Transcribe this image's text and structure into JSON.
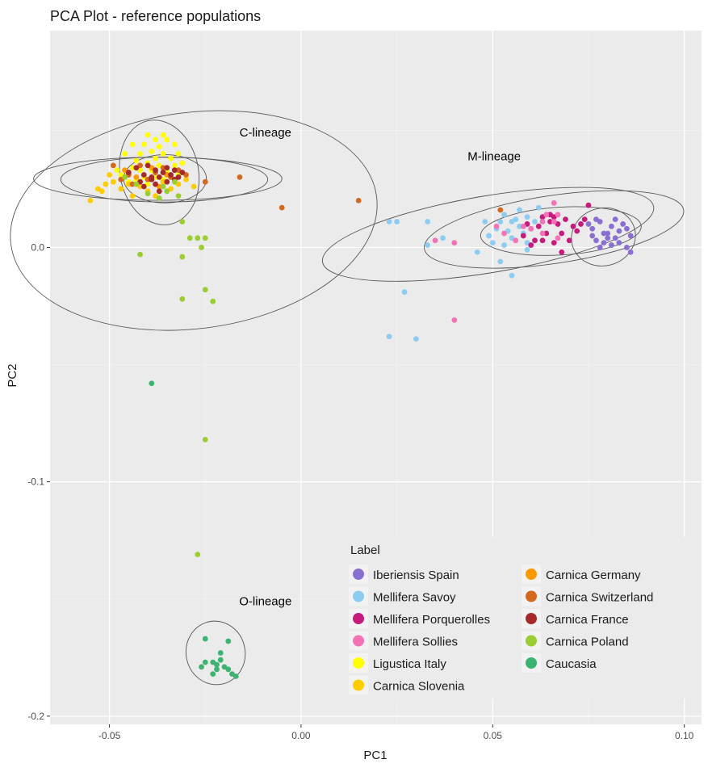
{
  "chart_data": {
    "type": "scatter",
    "title": "PCA Plot - reference populations",
    "xlabel": "PC1",
    "ylabel": "PC2",
    "xlim": [
      -0.0655,
      0.1045
    ],
    "ylim": [
      -0.2035,
      0.0925
    ],
    "x_ticks": [
      {
        "value": -0.05,
        "label": "-0.05"
      },
      {
        "value": 0.0,
        "label": "0.00"
      },
      {
        "value": 0.05,
        "label": "0.05"
      },
      {
        "value": 0.1,
        "label": "0.10"
      }
    ],
    "y_ticks": [
      {
        "value": 0.0,
        "label": "0.0"
      },
      {
        "value": -0.1,
        "label": "-0.1"
      },
      {
        "value": -0.2,
        "label": "-0.2"
      }
    ],
    "grid": true,
    "legend": {
      "title": "Label",
      "placement": "bottom-right"
    },
    "annotations": [
      {
        "text": "C-lineage",
        "x": -0.0093,
        "y": 0.049
      },
      {
        "text": "M-lineage",
        "x": 0.0504,
        "y": 0.039
      },
      {
        "text": "O-lineage",
        "x": -0.0093,
        "y": -0.151
      }
    ],
    "series": [
      {
        "name": "Iberiensis Spain",
        "color": "#8a6fd2",
        "points": [
          [
            0.075,
            0.01
          ],
          [
            0.076,
            0.008
          ],
          [
            0.078,
            0.011
          ],
          [
            0.079,
            0.006
          ],
          [
            0.08,
            0.004
          ],
          [
            0.081,
            0.009
          ],
          [
            0.082,
            0.012
          ],
          [
            0.083,
            0.007
          ],
          [
            0.077,
            0.003
          ],
          [
            0.076,
            0.005
          ],
          [
            0.079,
            0.002
          ],
          [
            0.081,
            0.001
          ],
          [
            0.083,
            0.002
          ],
          [
            0.084,
            0.01
          ],
          [
            0.085,
            0.008
          ],
          [
            0.086,
            0.005
          ],
          [
            0.085,
            0.0
          ],
          [
            0.086,
            -0.002
          ],
          [
            0.078,
            0.0
          ],
          [
            0.08,
            0.006
          ],
          [
            0.082,
            0.004
          ],
          [
            0.077,
            0.012
          ]
        ]
      },
      {
        "name": "Mellifera Savoy",
        "color": "#8dccf0",
        "points": [
          [
            0.023,
            0.011
          ],
          [
            0.025,
            0.011
          ],
          [
            0.033,
            0.011
          ],
          [
            0.033,
            0.001
          ],
          [
            0.037,
            0.004
          ],
          [
            0.046,
            -0.002
          ],
          [
            0.048,
            0.011
          ],
          [
            0.049,
            0.005
          ],
          [
            0.05,
            0.002
          ],
          [
            0.051,
            0.008
          ],
          [
            0.052,
            0.011
          ],
          [
            0.053,
            0.014
          ],
          [
            0.053,
            0.001
          ],
          [
            0.054,
            0.007
          ],
          [
            0.055,
            0.011
          ],
          [
            0.055,
            0.004
          ],
          [
            0.056,
            0.012
          ],
          [
            0.057,
            0.016
          ],
          [
            0.057,
            0.009
          ],
          [
            0.058,
            0.006
          ],
          [
            0.059,
            0.013
          ],
          [
            0.059,
            0.002
          ],
          [
            0.06,
            0.008
          ],
          [
            0.061,
            0.011
          ],
          [
            0.062,
            0.017
          ],
          [
            0.052,
            -0.006
          ],
          [
            0.055,
            -0.012
          ],
          [
            0.059,
            -0.001
          ],
          [
            0.061,
            0.003
          ],
          [
            0.027,
            -0.019
          ],
          [
            0.023,
            -0.038
          ],
          [
            0.03,
            -0.039
          ]
        ]
      },
      {
        "name": "Mellifera Porquerolles",
        "color": "#c51b7d",
        "points": [
          [
            0.061,
            0.003
          ],
          [
            0.062,
            0.009
          ],
          [
            0.063,
            0.013
          ],
          [
            0.064,
            0.006
          ],
          [
            0.065,
            0.011
          ],
          [
            0.066,
            0.013
          ],
          [
            0.066,
            0.002
          ],
          [
            0.067,
            0.01
          ],
          [
            0.068,
            0.006
          ],
          [
            0.068,
            -0.002
          ],
          [
            0.069,
            0.012
          ],
          [
            0.07,
            0.003
          ],
          [
            0.071,
            0.009
          ],
          [
            0.072,
            0.007
          ],
          [
            0.073,
            0.01
          ],
          [
            0.074,
            0.012
          ],
          [
            0.075,
            0.018
          ],
          [
            0.058,
            0.005
          ],
          [
            0.059,
            0.01
          ],
          [
            0.06,
            0.001
          ],
          [
            0.063,
            0.003
          ],
          [
            0.065,
            0.014
          ]
        ]
      },
      {
        "name": "Mellifera Sollies",
        "color": "#f472b6",
        "points": [
          [
            0.035,
            0.003
          ],
          [
            0.04,
            0.002
          ],
          [
            0.04,
            -0.031
          ],
          [
            0.051,
            0.009
          ],
          [
            0.053,
            0.006
          ],
          [
            0.056,
            0.003
          ],
          [
            0.058,
            0.009
          ],
          [
            0.06,
            0.008
          ],
          [
            0.063,
            0.011
          ],
          [
            0.064,
            0.014
          ],
          [
            0.066,
            0.011
          ],
          [
            0.066,
            0.019
          ],
          [
            0.067,
            0.004
          ],
          [
            0.067,
            0.014
          ],
          [
            0.063,
            0.006
          ]
        ]
      },
      {
        "name": "Ligustica Italy",
        "color": "#ffff00",
        "points": [
          [
            -0.047,
            0.031
          ],
          [
            -0.045,
            0.028
          ],
          [
            -0.044,
            0.034
          ],
          [
            -0.043,
            0.029
          ],
          [
            -0.043,
            0.037
          ],
          [
            -0.042,
            0.033
          ],
          [
            -0.042,
            0.04
          ],
          [
            -0.041,
            0.03
          ],
          [
            -0.041,
            0.044
          ],
          [
            -0.04,
            0.036
          ],
          [
            -0.04,
            0.027
          ],
          [
            -0.039,
            0.041
          ],
          [
            -0.039,
            0.033
          ],
          [
            -0.038,
            0.046
          ],
          [
            -0.038,
            0.038
          ],
          [
            -0.038,
            0.03
          ],
          [
            -0.037,
            0.043
          ],
          [
            -0.037,
            0.035
          ],
          [
            -0.036,
            0.029
          ],
          [
            -0.036,
            0.04
          ],
          [
            -0.035,
            0.046
          ],
          [
            -0.035,
            0.033
          ],
          [
            -0.034,
            0.038
          ],
          [
            -0.034,
            0.03
          ],
          [
            -0.033,
            0.044
          ],
          [
            -0.033,
            0.035
          ],
          [
            -0.032,
            0.04
          ],
          [
            -0.032,
            0.031
          ],
          [
            -0.031,
            0.036
          ],
          [
            -0.046,
            0.04
          ],
          [
            -0.048,
            0.033
          ],
          [
            -0.044,
            0.044
          ],
          [
            -0.04,
            0.048
          ],
          [
            -0.036,
            0.048
          ]
        ]
      },
      {
        "name": "Carnica Slovenia",
        "color": "#ffcc00",
        "points": [
          [
            -0.055,
            0.02
          ],
          [
            -0.052,
            0.024
          ],
          [
            -0.051,
            0.027
          ],
          [
            -0.05,
            0.031
          ],
          [
            -0.049,
            0.028
          ],
          [
            -0.047,
            0.025
          ],
          [
            -0.045,
            0.027
          ],
          [
            -0.044,
            0.022
          ],
          [
            -0.042,
            0.026
          ],
          [
            -0.04,
            0.024
          ],
          [
            -0.038,
            0.022
          ],
          [
            -0.036,
            0.028
          ],
          [
            -0.034,
            0.025
          ],
          [
            -0.032,
            0.027
          ],
          [
            -0.03,
            0.029
          ],
          [
            -0.028,
            0.026
          ],
          [
            -0.053,
            0.025
          ]
        ]
      },
      {
        "name": "Carnica Germany",
        "color": "#ff9900",
        "points": [
          [
            -0.046,
            0.033
          ],
          [
            -0.043,
            0.03
          ],
          [
            -0.039,
            0.034
          ],
          [
            -0.037,
            0.026
          ],
          [
            -0.035,
            0.031
          ]
        ]
      },
      {
        "name": "Carnica Switzerland",
        "color": "#d2691e",
        "points": [
          [
            -0.049,
            0.035
          ],
          [
            -0.047,
            0.029
          ],
          [
            -0.045,
            0.031
          ],
          [
            -0.042,
            0.035
          ],
          [
            -0.04,
            0.029
          ],
          [
            -0.038,
            0.032
          ],
          [
            -0.036,
            0.034
          ],
          [
            -0.034,
            0.03
          ],
          [
            -0.032,
            0.033
          ],
          [
            -0.03,
            0.031
          ],
          [
            -0.025,
            0.028
          ],
          [
            -0.016,
            0.03
          ],
          [
            -0.005,
            0.017
          ],
          [
            0.015,
            0.02
          ],
          [
            0.052,
            0.016
          ],
          [
            -0.044,
            0.027
          ]
        ]
      },
      {
        "name": "Carnica France",
        "color": "#a52a2a",
        "points": [
          [
            -0.045,
            0.032
          ],
          [
            -0.043,
            0.034
          ],
          [
            -0.042,
            0.028
          ],
          [
            -0.041,
            0.031
          ],
          [
            -0.04,
            0.035
          ],
          [
            -0.039,
            0.03
          ],
          [
            -0.038,
            0.027
          ],
          [
            -0.038,
            0.033
          ],
          [
            -0.037,
            0.03
          ],
          [
            -0.036,
            0.032
          ],
          [
            -0.035,
            0.028
          ],
          [
            -0.035,
            0.034
          ],
          [
            -0.034,
            0.031
          ],
          [
            -0.033,
            0.029
          ],
          [
            -0.033,
            0.033
          ],
          [
            -0.032,
            0.03
          ],
          [
            -0.031,
            0.032
          ],
          [
            -0.041,
            0.026
          ],
          [
            -0.037,
            0.024
          ],
          [
            -0.039,
            0.029
          ]
        ]
      },
      {
        "name": "Carnica Poland",
        "color": "#9acd32",
        "points": [
          [
            -0.046,
            0.03
          ],
          [
            -0.043,
            0.027
          ],
          [
            -0.04,
            0.023
          ],
          [
            -0.037,
            0.021
          ],
          [
            -0.035,
            0.024
          ],
          [
            -0.033,
            0.028
          ],
          [
            -0.032,
            0.022
          ],
          [
            -0.031,
            0.011
          ],
          [
            -0.029,
            0.004
          ],
          [
            -0.027,
            0.004
          ],
          [
            -0.026,
            0.0
          ],
          [
            -0.025,
            0.004
          ],
          [
            -0.042,
            -0.003
          ],
          [
            -0.031,
            -0.004
          ],
          [
            -0.025,
            -0.018
          ],
          [
            -0.023,
            -0.023
          ],
          [
            -0.031,
            -0.022
          ],
          [
            -0.025,
            -0.082
          ],
          [
            -0.027,
            -0.131
          ],
          [
            -0.036,
            0.026
          ]
        ]
      },
      {
        "name": "Caucasia",
        "color": "#3cb371",
        "points": [
          [
            -0.039,
            -0.058
          ],
          [
            -0.025,
            -0.167
          ],
          [
            -0.019,
            -0.168
          ],
          [
            -0.021,
            -0.173
          ],
          [
            -0.026,
            -0.179
          ],
          [
            -0.025,
            -0.177
          ],
          [
            -0.023,
            -0.177
          ],
          [
            -0.022,
            -0.178
          ],
          [
            -0.021,
            -0.176
          ],
          [
            -0.02,
            -0.179
          ],
          [
            -0.019,
            -0.18
          ],
          [
            -0.018,
            -0.182
          ],
          [
            -0.017,
            -0.183
          ],
          [
            -0.023,
            -0.182
          ],
          [
            -0.022,
            -0.18
          ]
        ]
      }
    ],
    "ellipses": [
      {
        "cx": -0.028,
        "cy": 0.0115,
        "rx": 0.0282,
        "ry": 0.0787,
        "angle": -97.5
      },
      {
        "cx": -0.0357,
        "cy": 0.029,
        "rx": 0.027,
        "ry": 0.0096,
        "angle": 0
      },
      {
        "cx": -0.0374,
        "cy": 0.0293,
        "rx": 0.0324,
        "ry": 0.0092,
        "angle": 0
      },
      {
        "cx": -0.037,
        "cy": 0.032,
        "rx": 0.0138,
        "ry": 0.0167,
        "angle": -102
      },
      {
        "cx": -0.0355,
        "cy": 0.0293,
        "rx": 0.0108,
        "ry": 0.0103,
        "angle": 0
      },
      {
        "cx": 0.0488,
        "cy": 0.0056,
        "rx": 0.0438,
        "ry": 0.0164,
        "angle": -9.5
      },
      {
        "cx": 0.066,
        "cy": 0.0077,
        "rx": 0.0342,
        "ry": 0.0145,
        "angle": -8.5
      },
      {
        "cx": 0.0678,
        "cy": 0.007,
        "rx": 0.021,
        "ry": 0.0102,
        "angle": -3.5
      },
      {
        "cx": 0.0789,
        "cy": 0.0045,
        "rx": 0.0084,
        "ry": 0.0123,
        "angle": -14
      },
      {
        "cx": -0.0223,
        "cy": -0.173,
        "rx": 0.0077,
        "ry": 0.0136,
        "angle": -11
      }
    ]
  }
}
